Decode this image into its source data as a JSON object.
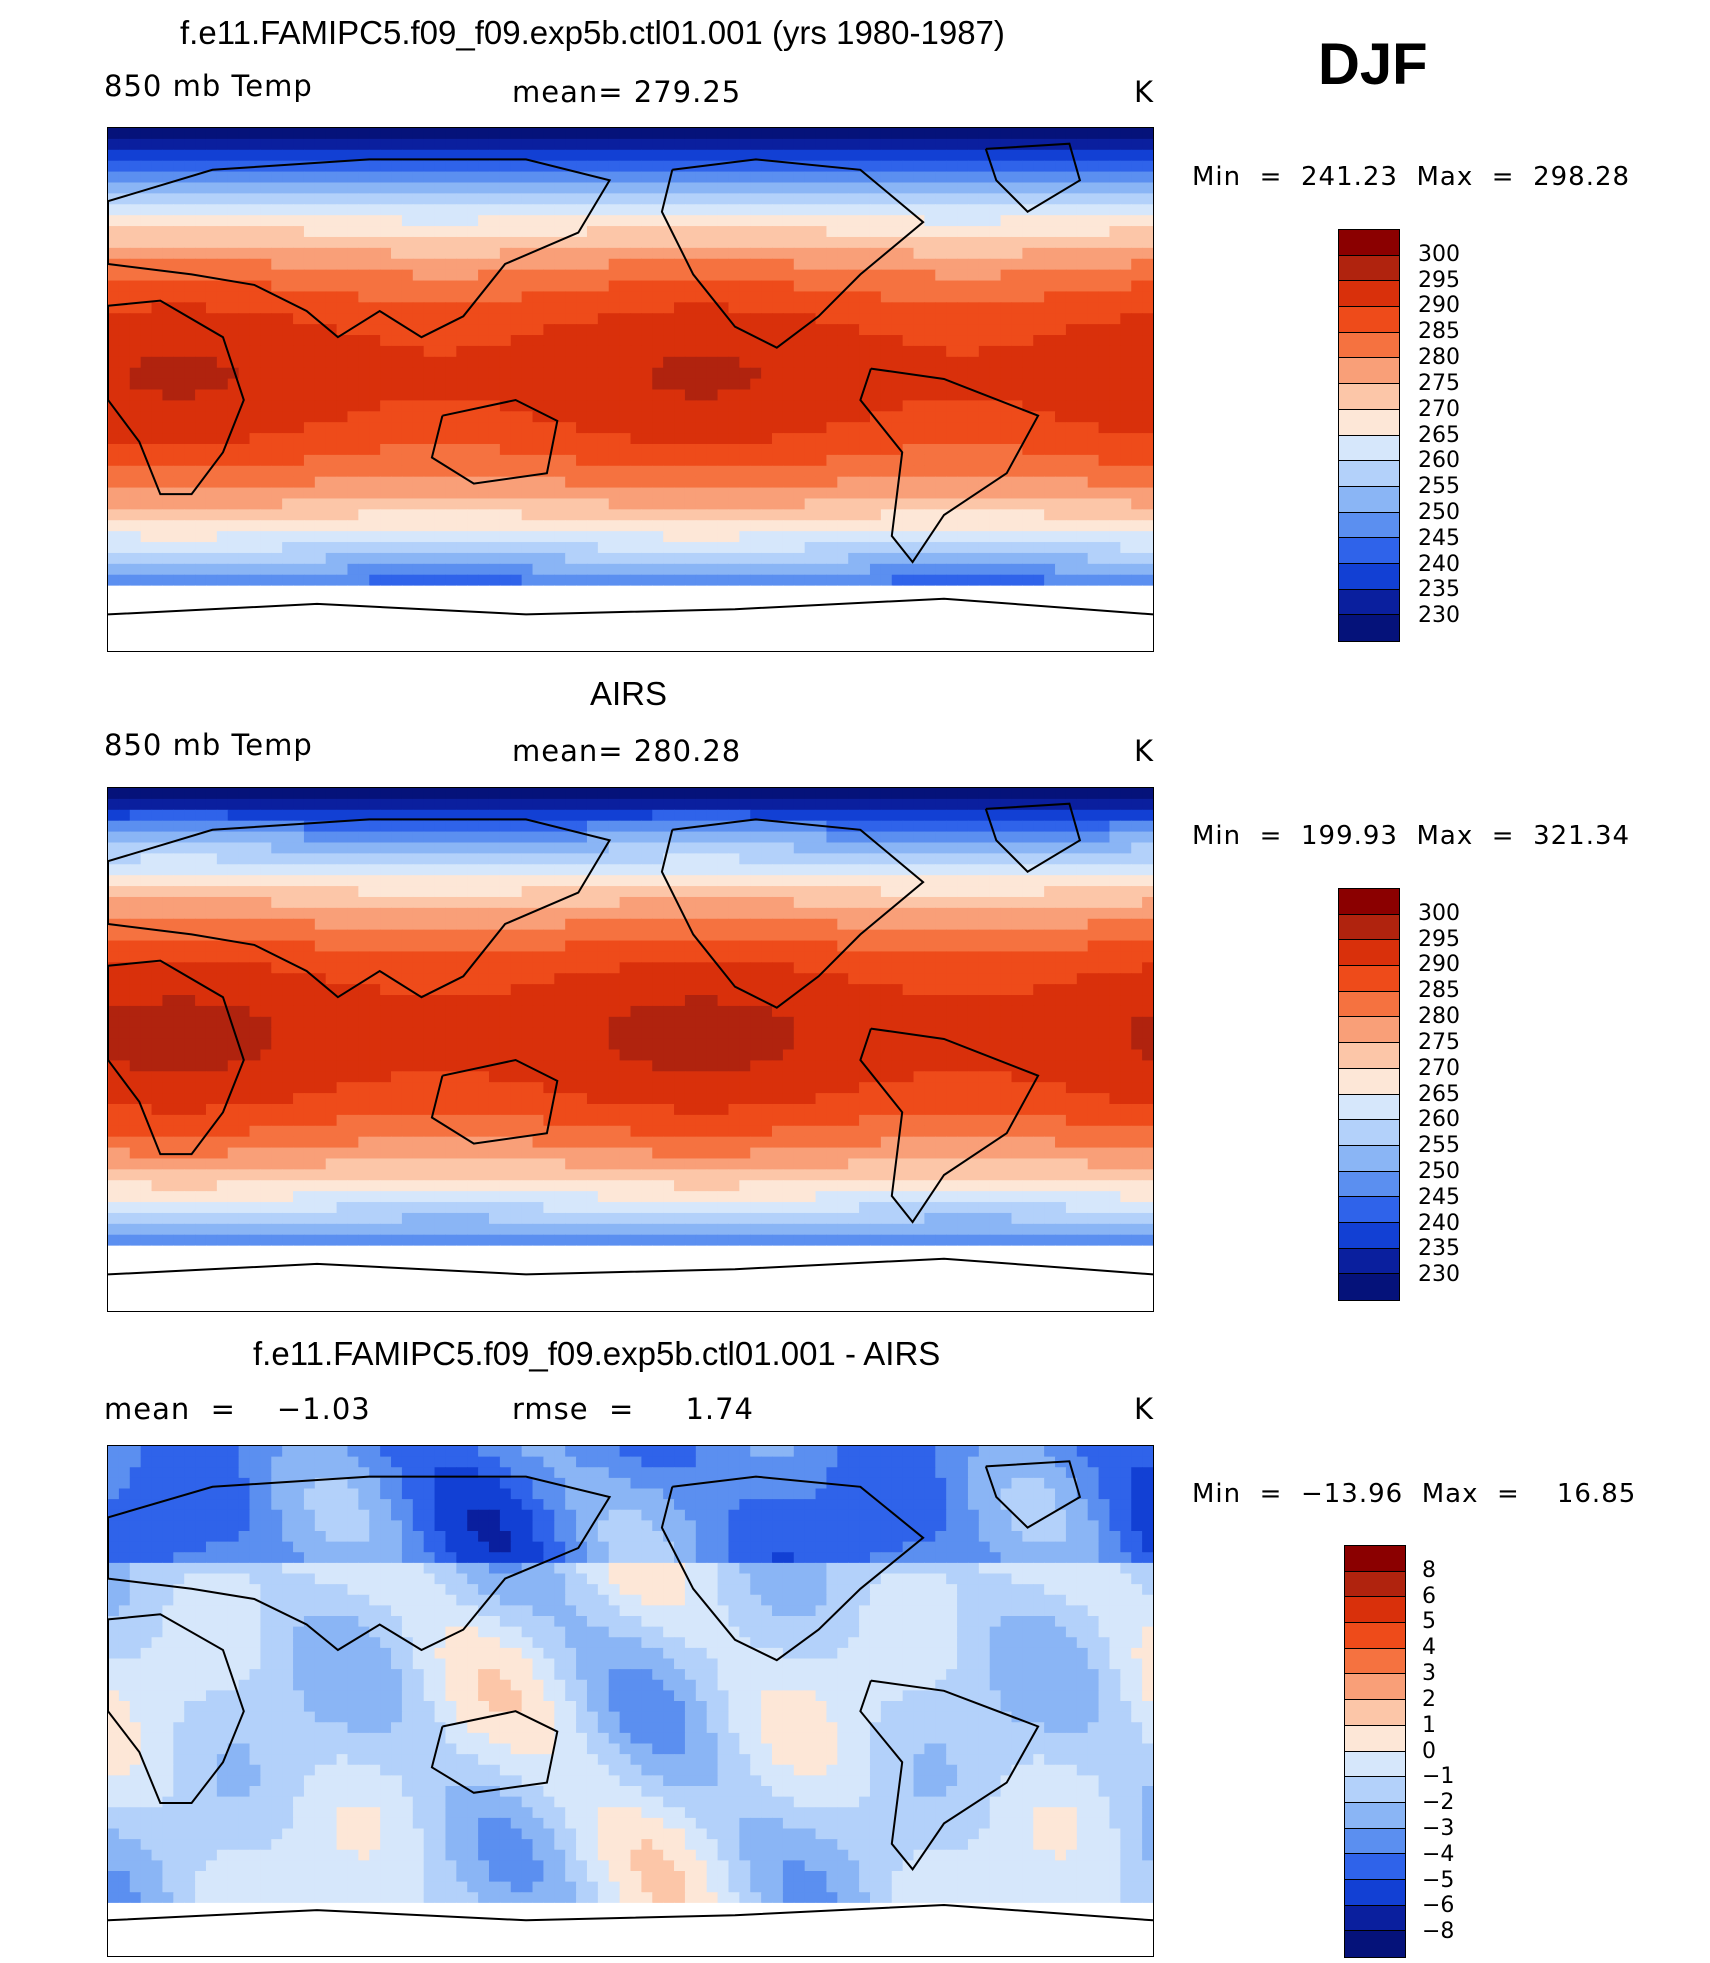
{
  "season": "DJF",
  "panels": [
    {
      "title": "f.e11.FAMIPC5.f09_f09.exp5b.ctl01.001 (yrs 1980-1987)",
      "left_label": "850 mb Temp",
      "center_label": "mean= 279.25",
      "units": "K",
      "minmax": "Min  =  241.23  Max  =  298.28"
    },
    {
      "title": "AIRS",
      "left_label": "850 mb Temp",
      "center_label": "mean= 280.28",
      "units": "K",
      "minmax": "Min  =  199.93  Max  =  321.34"
    },
    {
      "title": "f.e11.FAMIPC5.f09_f09.exp5b.ctl01.001 - AIRS",
      "left_label": "mean  =    −1.03",
      "center_label": "rmse  =     1.74",
      "units": "K",
      "minmax": "Min  =  −13.96  Max  =    16.85"
    }
  ],
  "chart_data": [
    {
      "type": "heatmap",
      "title": "f.e11.FAMIPC5.f09_f09.exp5b.ctl01.001 (yrs 1980-1987)",
      "variable": "850 mb Temp",
      "units": "K",
      "mean": 279.25,
      "min": 241.23,
      "max": 298.28,
      "colorbar_levels": [
        300,
        295,
        290,
        285,
        280,
        275,
        270,
        265,
        260,
        255,
        250,
        245,
        240,
        235,
        230
      ],
      "colorbar_colors": [
        "#8b0000",
        "#b0230e",
        "#d9300b",
        "#ee4b1a",
        "#f57240",
        "#f99f78",
        "#fcc6a8",
        "#fde7d7",
        "#d6e7fb",
        "#b3d1fa",
        "#8ab5f5",
        "#5b8ff0",
        "#2f63ea",
        "#1240d4",
        "#0a1f9e",
        "#05127a"
      ]
    },
    {
      "type": "heatmap",
      "title": "AIRS",
      "variable": "850 mb Temp",
      "units": "K",
      "mean": 280.28,
      "min": 199.93,
      "max": 321.34,
      "colorbar_levels": [
        300,
        295,
        290,
        285,
        280,
        275,
        270,
        265,
        260,
        255,
        250,
        245,
        240,
        235,
        230
      ],
      "colorbar_colors": [
        "#8b0000",
        "#b0230e",
        "#d9300b",
        "#ee4b1a",
        "#f57240",
        "#f99f78",
        "#fcc6a8",
        "#fde7d7",
        "#d6e7fb",
        "#b3d1fa",
        "#8ab5f5",
        "#5b8ff0",
        "#2f63ea",
        "#1240d4",
        "#0a1f9e",
        "#05127a"
      ]
    },
    {
      "type": "heatmap",
      "title": "f.e11.FAMIPC5.f09_f09.exp5b.ctl01.001 - AIRS",
      "units": "K",
      "mean": -1.03,
      "rmse": 1.74,
      "min": -13.96,
      "max": 16.85,
      "colorbar_levels": [
        "8",
        "6",
        "5",
        "4",
        "3",
        "2",
        "1",
        "0",
        "−1",
        "−2",
        "−3",
        "−4",
        "−5",
        "−6",
        "−8"
      ],
      "colorbar_colors": [
        "#8b0000",
        "#b0230e",
        "#d9300b",
        "#ee4b1a",
        "#f57240",
        "#f99f78",
        "#fcc6a8",
        "#fde7d7",
        "#d6e7fb",
        "#b3d1fa",
        "#8ab5f5",
        "#5b8ff0",
        "#2f63ea",
        "#1240d4",
        "#0a1f9e",
        "#05127a"
      ]
    }
  ]
}
